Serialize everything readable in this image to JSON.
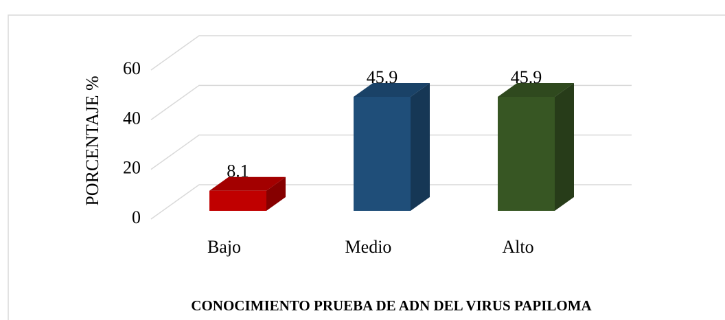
{
  "chart_data": {
    "type": "bar3d",
    "title": "CONOCIMIENTO PRUEBA DE ADN DEL VIRUS PAPILOMA",
    "y_label": "PORCENTAJE  %",
    "categories": [
      "Bajo",
      "Medio",
      "Alto"
    ],
    "values": [
      8.1,
      45.9,
      45.9
    ],
    "colors": [
      "#c00000",
      "#1f4e79",
      "#375623"
    ],
    "ylim": [
      0,
      60
    ],
    "yticks": [
      0,
      20,
      40,
      60
    ],
    "grid": true
  }
}
